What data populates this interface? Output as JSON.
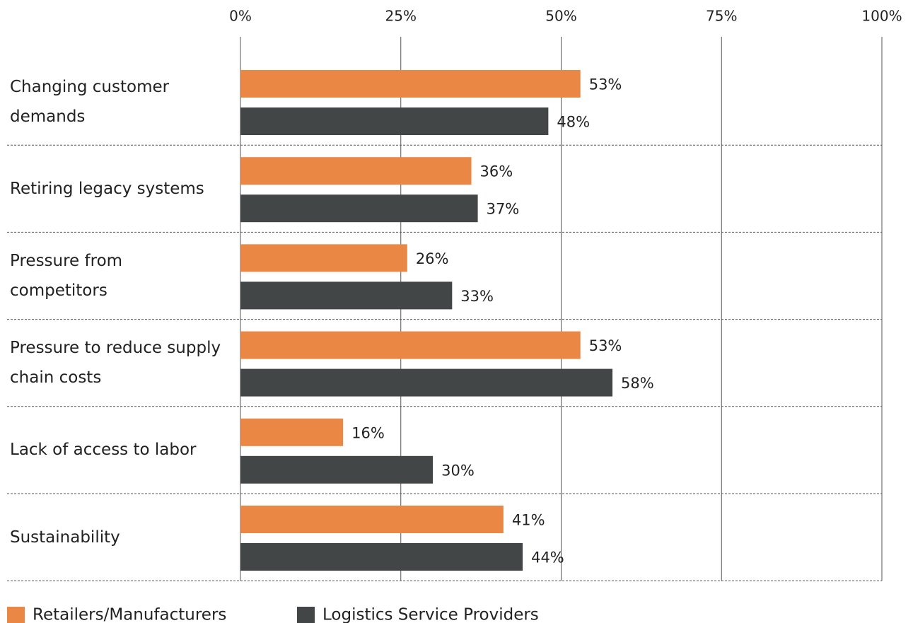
{
  "chart_data": {
    "type": "bar",
    "orientation": "horizontal",
    "categories": [
      "Changing customer demands",
      "Retiring legacy systems",
      "Pressure from competitors",
      "Pressure to reduce supply chain costs",
      "Lack of access to labor",
      "Sustainability"
    ],
    "series": [
      {
        "name": "Retailers/Manufacturers",
        "color": "#eb8745",
        "values": [
          53,
          36,
          26,
          53,
          16,
          41
        ],
        "value_labels": [
          "53%",
          "36%",
          "26%",
          "53%",
          "16%",
          "41%"
        ]
      },
      {
        "name": "Logistics Service Providers",
        "color": "#434647",
        "values": [
          48,
          37,
          33,
          58,
          30,
          44
        ],
        "value_labels": [
          "48%",
          "37%",
          "33%",
          "58%",
          "30%",
          "44%"
        ]
      }
    ],
    "xlim": [
      0,
      100
    ],
    "xticks": [
      {
        "value": 0,
        "label": "0%"
      },
      {
        "value": 25,
        "label": "25%"
      },
      {
        "value": 50,
        "label": "50%"
      },
      {
        "value": 75,
        "label": "75%"
      },
      {
        "value": 100,
        "label": "100%"
      }
    ],
    "grid": true,
    "legend": "bottom"
  }
}
